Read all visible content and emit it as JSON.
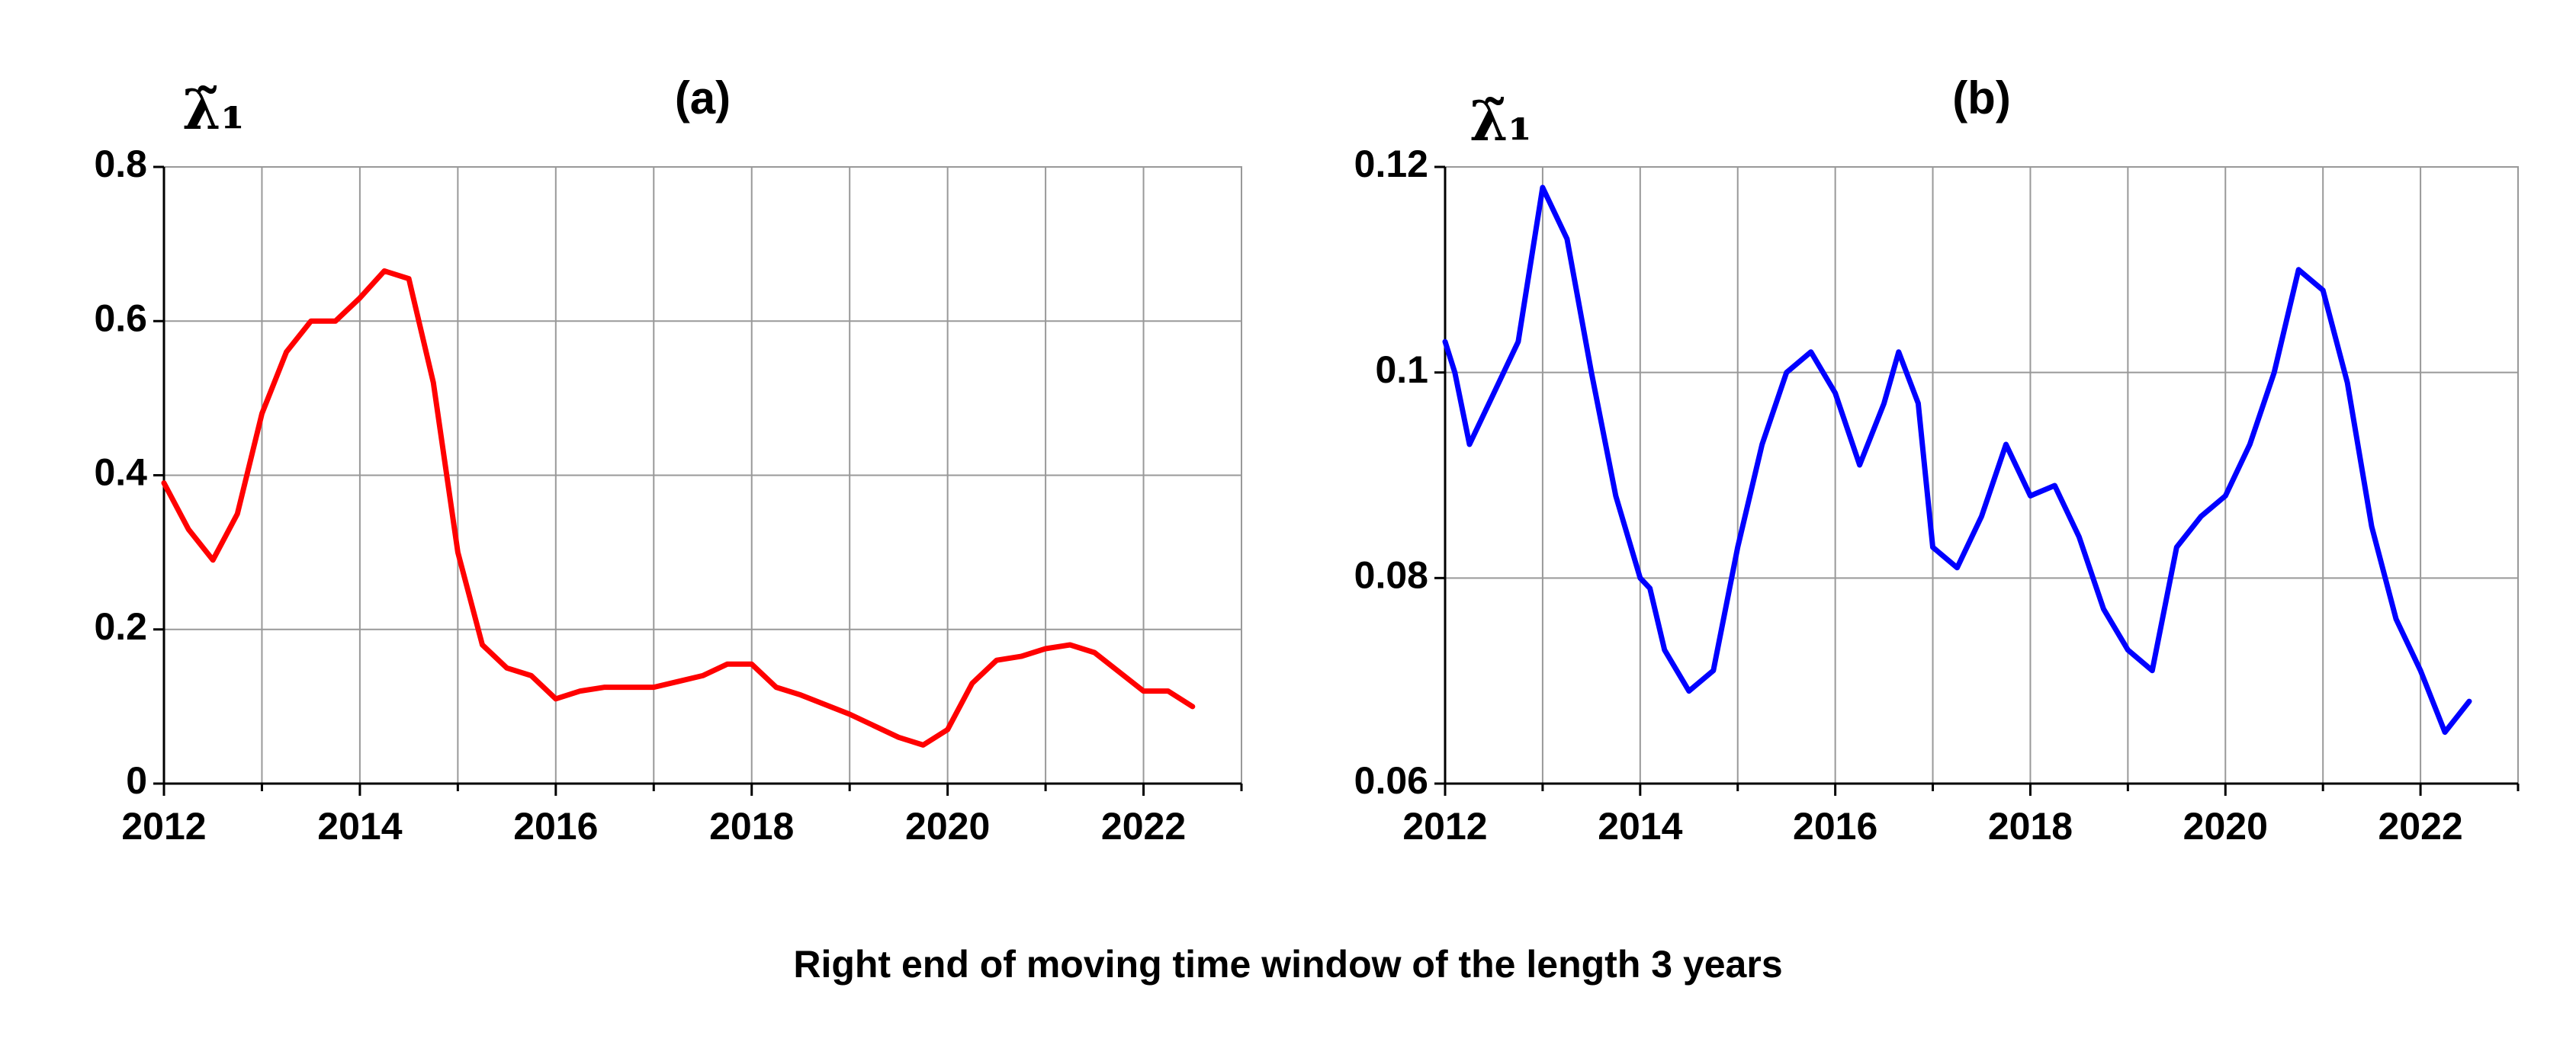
{
  "chart_data": [
    {
      "type": "line",
      "title": "(a)",
      "ylabel": "λ̃₁",
      "color": "#ff0000",
      "xlim": [
        2012,
        2023
      ],
      "xticks": [
        2012,
        2014,
        2016,
        2018,
        2020,
        2022
      ],
      "xminorticks": [
        2013,
        2015,
        2017,
        2019,
        2021,
        2023
      ],
      "ylim": [
        0,
        0.8
      ],
      "yticks": [
        0,
        0.2,
        0.4,
        0.6,
        0.8
      ],
      "grid": true,
      "x": [
        2012.0,
        2012.25,
        2012.5,
        2012.75,
        2013.0,
        2013.25,
        2013.5,
        2013.75,
        2014.0,
        2014.25,
        2014.5,
        2014.75,
        2015.0,
        2015.25,
        2015.5,
        2015.75,
        2016.0,
        2016.25,
        2016.5,
        2017.0,
        2017.5,
        2017.75,
        2018.0,
        2018.25,
        2018.5,
        2019.0,
        2019.5,
        2019.75,
        2020.0,
        2020.25,
        2020.5,
        2020.75,
        2021.0,
        2021.25,
        2021.5,
        2021.75,
        2022.0,
        2022.25,
        2022.5
      ],
      "values": [
        0.39,
        0.33,
        0.29,
        0.35,
        0.48,
        0.56,
        0.6,
        0.6,
        0.63,
        0.665,
        0.655,
        0.52,
        0.3,
        0.18,
        0.15,
        0.14,
        0.11,
        0.12,
        0.125,
        0.125,
        0.14,
        0.155,
        0.155,
        0.125,
        0.115,
        0.09,
        0.06,
        0.05,
        0.07,
        0.13,
        0.16,
        0.165,
        0.175,
        0.18,
        0.17,
        0.145,
        0.12,
        0.12,
        0.1
      ]
    },
    {
      "type": "line",
      "title": "(b)",
      "ylabel": "λ̃₁",
      "color": "#0000ff",
      "xlim": [
        2012,
        2023
      ],
      "xticks": [
        2012,
        2014,
        2016,
        2018,
        2020,
        2022
      ],
      "xminorticks": [
        2013,
        2015,
        2017,
        2019,
        2021,
        2023
      ],
      "ylim": [
        0.06,
        0.12
      ],
      "yticks": [
        0.06,
        0.08,
        0.1,
        0.12
      ],
      "grid": true,
      "x": [
        2012.0,
        2012.1,
        2012.25,
        2012.5,
        2012.75,
        2013.0,
        2013.25,
        2013.5,
        2013.75,
        2014.0,
        2014.1,
        2014.25,
        2014.5,
        2014.75,
        2015.0,
        2015.25,
        2015.5,
        2015.75,
        2016.0,
        2016.25,
        2016.5,
        2016.65,
        2016.85,
        2017.0,
        2017.25,
        2017.5,
        2017.75,
        2018.0,
        2018.25,
        2018.5,
        2018.75,
        2019.0,
        2019.25,
        2019.5,
        2019.75,
        2020.0,
        2020.25,
        2020.5,
        2020.75,
        2021.0,
        2021.25,
        2021.5,
        2021.75,
        2022.0,
        2022.25,
        2022.5
      ],
      "values": [
        0.103,
        0.1,
        0.093,
        0.098,
        0.103,
        0.118,
        0.113,
        0.1,
        0.088,
        0.08,
        0.079,
        0.073,
        0.069,
        0.071,
        0.083,
        0.093,
        0.1,
        0.102,
        0.098,
        0.091,
        0.097,
        0.102,
        0.097,
        0.083,
        0.081,
        0.086,
        0.093,
        0.088,
        0.089,
        0.084,
        0.077,
        0.073,
        0.071,
        0.083,
        0.086,
        0.088,
        0.093,
        0.1,
        0.11,
        0.108,
        0.099,
        0.085,
        0.076,
        0.071,
        0.065,
        0.068
      ]
    }
  ],
  "xlabel": "Right end of moving time window of the length 3 years"
}
